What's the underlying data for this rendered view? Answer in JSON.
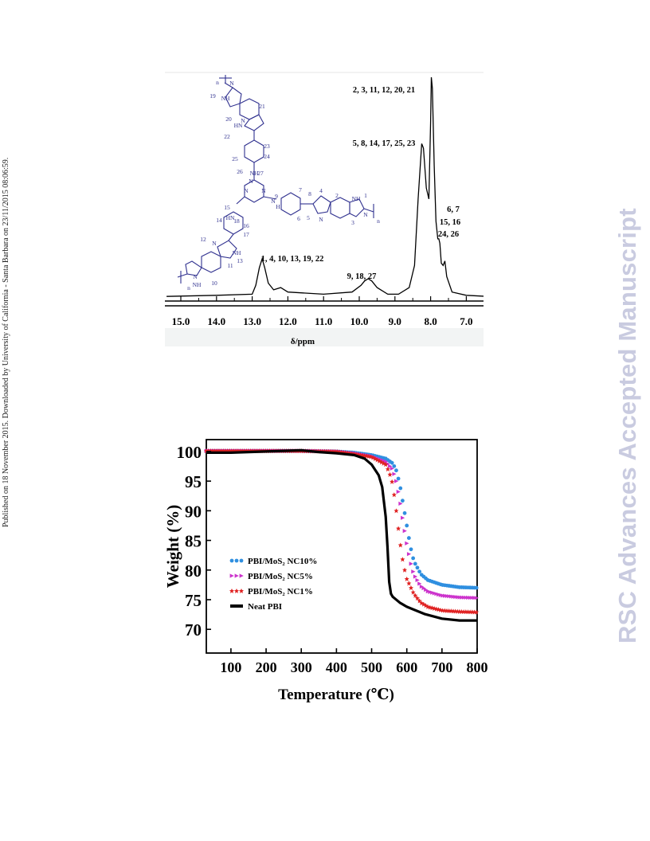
{
  "side_note": "Published on 18 November 2015. Downloaded by University of California - Santa Barbara on 23/11/2015 08:06:59.",
  "watermark": "RSC Advances Accepted Manuscript",
  "figures": [
    {
      "id": "nmr",
      "chart_data": {
        "type": "line",
        "title": "",
        "xlabel": "δ/ppm",
        "ylabel": "",
        "x_ticks": [
          "15.0",
          "14.0",
          "13.0",
          "12.0",
          "11.0",
          "10.0",
          "9.0",
          "8.0",
          "7.0"
        ],
        "xlim": [
          15.4,
          6.4
        ],
        "x_reversed": true,
        "grid": false,
        "series": [
          {
            "x": [
              15.4,
              14.0,
              13.0,
              12.9,
              12.8,
              12.72,
              12.65,
              12.55,
              12.4,
              12.2,
              12.0,
              11.0,
              10.2,
              9.95,
              9.85,
              9.75,
              9.65,
              9.5,
              9.2,
              8.9,
              8.6,
              8.45,
              8.35,
              8.25,
              8.2,
              8.12,
              8.05,
              8.0,
              7.98,
              7.95,
              7.9,
              7.85,
              7.8,
              7.77,
              7.74,
              7.7,
              7.65,
              7.6,
              7.55,
              7.4,
              7.0,
              6.4
            ],
            "y": [
              0.01,
              0.015,
              0.02,
              0.06,
              0.14,
              0.18,
              0.14,
              0.07,
              0.04,
              0.05,
              0.03,
              0.02,
              0.03,
              0.06,
              0.08,
              0.09,
              0.08,
              0.05,
              0.02,
              0.02,
              0.05,
              0.15,
              0.45,
              0.7,
              0.68,
              0.5,
              0.45,
              0.8,
              1.0,
              0.95,
              0.6,
              0.35,
              0.27,
              0.27,
              0.25,
              0.16,
              0.15,
              0.17,
              0.1,
              0.03,
              0.015,
              0.01
            ]
          }
        ],
        "annotations": [
          {
            "text": "2, 3, 11, 12, 20, 21",
            "x": 7.98
          },
          {
            "text": "5, 8, 14, 17, 25, 23",
            "x": 8.2
          },
          {
            "text": "6, 7",
            "x": 7.7
          },
          {
            "text": "15, 16",
            "x": 7.7
          },
          {
            "text": "24, 26",
            "x": 7.7
          },
          {
            "text": "1, 4, 10, 13, 19, 22",
            "x": 12.72
          },
          {
            "text": "9, 18, 27",
            "x": 9.75
          }
        ]
      },
      "structure": {
        "labels": [
          "n",
          "19",
          "NH",
          "N",
          "21",
          "20",
          "N",
          "22",
          "HN",
          "23",
          "25",
          "24",
          "26",
          "NH",
          "27",
          "N",
          "N",
          "N",
          "N",
          "H",
          "9",
          "15",
          "HN",
          "18",
          "14",
          "16",
          "17",
          "12",
          "N",
          "NH",
          "13",
          "11",
          "N",
          "NH",
          "10",
          "n",
          "7",
          "8",
          "6",
          "5",
          "4",
          "N",
          "2",
          "NH",
          "1",
          "N",
          "3",
          "n"
        ]
      }
    },
    {
      "id": "tga",
      "chart_data": {
        "type": "scatter",
        "title": "",
        "xlabel": "Temperature (℃)",
        "ylabel": "Weight (%)",
        "x_ticks": [
          "100",
          "200",
          "300",
          "400",
          "500",
          "600",
          "700",
          "800"
        ],
        "y_ticks": [
          "70",
          "75",
          "80",
          "85",
          "90",
          "95",
          "100"
        ],
        "xlim": [
          30,
          800
        ],
        "ylim": [
          66,
          102
        ],
        "grid": false,
        "legend": "center-left",
        "series": [
          {
            "name": "PBI/MoS₂ NC10%",
            "color": "#2f8fe0",
            "marker": "circle",
            "x": [
              30,
              100,
              200,
              300,
              400,
              450,
              500,
              540,
              560,
              570,
              580,
              590,
              600,
              610,
              620,
              640,
              660,
              700,
              750,
              800
            ],
            "y": [
              100.1,
              100.1,
              100.1,
              100.1,
              100,
              99.8,
              99.4,
              98.8,
              98,
              96.8,
              94.5,
              91,
              87.5,
              84,
              81.5,
              79.3,
              78.3,
              77.5,
              77.1,
              77
            ]
          },
          {
            "name": "PBI/MoS₂ NC5%",
            "color": "#cc33cc",
            "marker": "triangle",
            "x": [
              30,
              100,
              200,
              300,
              400,
              450,
              500,
              540,
              560,
              570,
              580,
              590,
              600,
              610,
              620,
              640,
              660,
              700,
              750,
              800
            ],
            "y": [
              100.1,
              100.1,
              100.1,
              100.1,
              100,
              99.7,
              99.2,
              98.3,
              97,
              95,
              92,
              88,
              84.5,
              81.5,
              79.3,
              77.3,
              76.4,
              75.7,
              75.4,
              75.3
            ]
          },
          {
            "name": "PBI/MoS₂ NC1%",
            "color": "#e02222",
            "marker": "star",
            "x": [
              30,
              100,
              200,
              300,
              400,
              450,
              500,
              540,
              550,
              560,
              570,
              580,
              590,
              600,
              620,
              640,
              660,
              700,
              750,
              800
            ],
            "y": [
              100.1,
              100.1,
              100.1,
              100.1,
              100,
              99.6,
              99.1,
              97.8,
              96.5,
              94.5,
              90,
              85,
              81,
              78.5,
              76,
              74.5,
              73.8,
              73.2,
              73,
              72.9
            ]
          },
          {
            "name": "Neat PBI",
            "color": "#000000",
            "marker": "line",
            "x": [
              30,
              100,
              200,
              300,
              350,
              400,
              450,
              480,
              500,
              520,
              530,
              540,
              545,
              550,
              555,
              560,
              580,
              600,
              650,
              700,
              750,
              800
            ],
            "y": [
              99.8,
              99.8,
              100,
              100.2,
              99.9,
              99.7,
              99.4,
              98.8,
              97.8,
              96,
              94,
              89,
              84,
              78,
              76,
              75.5,
              74.5,
              73.8,
              72.6,
              71.8,
              71.5,
              71.5
            ]
          }
        ]
      }
    }
  ]
}
